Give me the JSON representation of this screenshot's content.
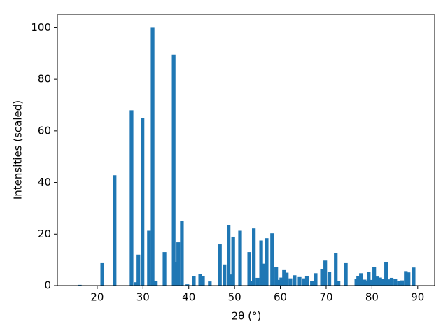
{
  "chart_data": {
    "type": "bar",
    "x_label": "2θ (°)",
    "y_label": "Intensities (scaled)",
    "x": [
      16.2,
      21.1,
      23.8,
      27.5,
      28.4,
      29.0,
      29.9,
      31.3,
      32.1,
      32.8,
      34.7,
      36.7,
      37.1,
      37.7,
      38.5,
      39.7,
      41.1,
      42.5,
      43.1,
      44.6,
      46.8,
      47.8,
      48.7,
      49.4,
      49.7,
      51.2,
      53.2,
      53.5,
      54.2,
      55.0,
      55.8,
      56.2,
      57.0,
      58.2,
      59.1,
      59.7,
      60.2,
      60.8,
      61.4,
      62.2,
      63.1,
      64.2,
      65.2,
      65.8,
      66.9,
      67.7,
      69.1,
      69.8,
      70.7,
      72.1,
      72.7,
      74.3,
      76.6,
      77.0,
      77.6,
      78.4,
      78.8,
      79.3,
      79.8,
      80.5,
      81.1,
      81.8,
      82.4,
      83.1,
      83.7,
      84.3,
      85.1,
      85.9,
      86.6,
      87.4,
      88.0,
      89.1
    ],
    "values": [
      0.3,
      8.7,
      42.8,
      68,
      1.3,
      12,
      65,
      21.3,
      100,
      1.8,
      13,
      89.6,
      9,
      16.8,
      25,
      0.5,
      3.7,
      4.5,
      3.8,
      1.6,
      16,
      8.2,
      23.5,
      4.3,
      19,
      21.3,
      13,
      1.8,
      22.2,
      3,
      17.5,
      8.5,
      18.4,
      20.3,
      7.2,
      2.2,
      3.1,
      6,
      5,
      2.8,
      4,
      3.3,
      2.8,
      3.8,
      1.8,
      4.8,
      6.5,
      9.7,
      5.2,
      12.7,
      1.8,
      8.7,
      2.5,
      3.8,
      4.8,
      2.3,
      1.8,
      5.3,
      2.2,
      7.3,
      3.5,
      3.1,
      2.7,
      9,
      2.4,
      3,
      2.6,
      1.8,
      2,
      5.6,
      5.1,
      7
    ],
    "color": "#1f77b4",
    "xlim": [
      11.3,
      93.7
    ],
    "xticks": [
      20,
      30,
      40,
      50,
      60,
      70,
      80,
      90
    ],
    "ylim": [
      0,
      105
    ],
    "yticks": [
      0,
      20,
      40,
      60,
      80,
      100
    ]
  }
}
